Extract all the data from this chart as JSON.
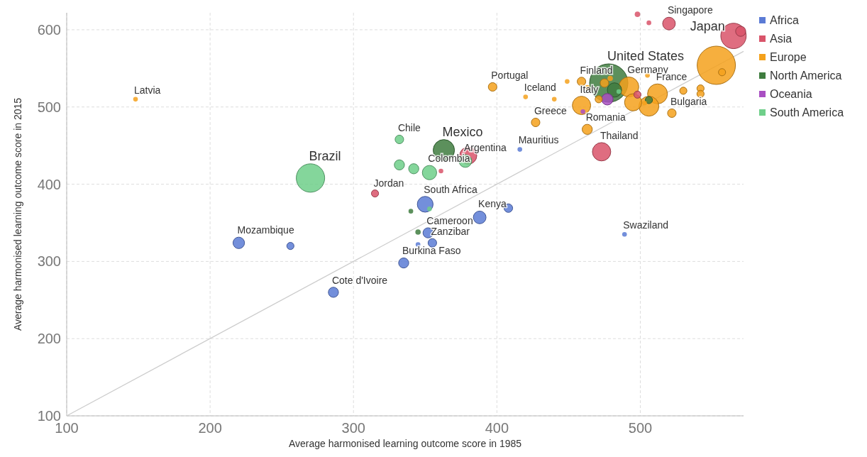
{
  "chart_data": {
    "type": "bubble",
    "xlabel": "Average harmonised learning outcome score in 1985",
    "ylabel": "Average harmonised learning outcome score in 2015",
    "xlim": [
      100,
      572
    ],
    "ylim": [
      100,
      622
    ],
    "xticks": [
      100,
      200,
      300,
      400,
      500
    ],
    "yticks": [
      100,
      200,
      300,
      400,
      500,
      600
    ],
    "grid": true,
    "legend": "top right",
    "series": [
      {
        "name": "Africa",
        "color": "#5b7bd5",
        "x": [
          220,
          256,
          286,
          335,
          352,
          345,
          355,
          350,
          388,
          408,
          416,
          489
        ],
        "values": [
          324,
          320,
          260,
          298,
          337,
          322,
          324,
          374,
          357,
          369,
          445,
          335
        ],
        "sizes": [
          0.09,
          0.035,
          0.07,
          0.07,
          0.07,
          0.015,
          0.05,
          0.17,
          0.11,
          0.05,
          0.015,
          0.015
        ]
      },
      {
        "name": "Asia",
        "color": "#d9546a",
        "x": [
          315,
          380,
          361,
          473,
          520,
          498,
          506,
          565,
          570,
          498
        ],
        "values": [
          388,
          437,
          417,
          442,
          608,
          620,
          609,
          592,
          598,
          516
        ],
        "sizes": [
          0.035,
          0.2,
          0.015,
          0.23,
          0.11,
          0.02,
          0.015,
          0.44,
          0.07,
          0.035
        ]
      },
      {
        "name": "Europe",
        "color": "#f4a11c",
        "x": [
          148,
          397,
          420,
          427,
          463,
          459,
          475,
          479,
          459,
          449,
          440,
          463,
          471,
          492,
          495,
          512,
          506,
          522,
          542,
          542,
          530,
          553,
          557,
          505,
          503
        ],
        "values": [
          510,
          526,
          513,
          480,
          471,
          502,
          531,
          537,
          533,
          533,
          510,
          525,
          510,
          526,
          506,
          517,
          501,
          492,
          524,
          517,
          521,
          554,
          545,
          541,
          505
        ],
        "sizes": [
          0.015,
          0.05,
          0.015,
          0.05,
          0.07,
          0.23,
          0.05,
          0.02,
          0.05,
          0.015,
          0.015,
          0.02,
          0.035,
          0.27,
          0.2,
          0.27,
          0.27,
          0.05,
          0.035,
          0.035,
          0.035,
          1,
          0.035,
          0.015,
          0.015
        ]
      },
      {
        "name": "North America",
        "color": "#3f7d3f",
        "x": [
          478,
          482,
          363,
          506,
          340,
          345
        ],
        "values": [
          531,
          522,
          444,
          509,
          365,
          338
        ],
        "sizes": [
          1,
          0.14,
          0.31,
          0.035,
          0.015,
          0.02
        ]
      },
      {
        "name": "Oceania",
        "color": "#a94fc2",
        "x": [
          477,
          460
        ],
        "values": [
          510,
          494
        ],
        "sizes": [
          0.09,
          0.015
        ]
      },
      {
        "name": "South America",
        "color": "#6fcf8a",
        "x": [
          270,
          332,
          332,
          342,
          353,
          378,
          353,
          485
        ],
        "values": [
          408,
          458,
          425,
          420,
          415,
          430,
          368,
          520
        ],
        "sizes": [
          0.55,
          0.05,
          0.07,
          0.07,
          0.14,
          0.11,
          0.015,
          0.015
        ]
      },
      {
        "type": "line",
        "color": "#cccccc",
        "x": [
          100,
          572
        ],
        "values": [
          100,
          572
        ]
      }
    ],
    "annotations": [
      {
        "text": "Latvia",
        "x": 148,
        "y": 510
      },
      {
        "text": "Brazil",
        "x": 270,
        "y": 408
      },
      {
        "text": "Mozambique",
        "x": 220,
        "y": 324
      },
      {
        "text": "Cote d'Ivoire",
        "x": 286,
        "y": 260
      },
      {
        "text": "Burkina Faso",
        "x": 335,
        "y": 298
      },
      {
        "text": "Zanzibar",
        "x": 355,
        "y": 324
      },
      {
        "text": "Cameroon",
        "x": 352,
        "y": 337
      },
      {
        "text": "South Africa",
        "x": 350,
        "y": 374
      },
      {
        "text": "Jordan",
        "x": 315,
        "y": 388
      },
      {
        "text": "Kenya",
        "x": 388,
        "y": 357
      },
      {
        "text": "Chile",
        "x": 332,
        "y": 458
      },
      {
        "text": "Mexico",
        "x": 363,
        "y": 444
      },
      {
        "text": "Colombia",
        "x": 353,
        "y": 415
      },
      {
        "text": "Argentina",
        "x": 378,
        "y": 430
      },
      {
        "text": "Mauritius",
        "x": 416,
        "y": 445
      },
      {
        "text": "Swaziland",
        "x": 489,
        "y": 335
      },
      {
        "text": "Thailand",
        "x": 473,
        "y": 442
      },
      {
        "text": "Romania",
        "x": 463,
        "y": 471
      },
      {
        "text": "Greece",
        "x": 427,
        "y": 480
      },
      {
        "text": "Italy",
        "x": 459,
        "y": 502
      },
      {
        "text": "Iceland",
        "x": 420,
        "y": 513
      },
      {
        "text": "Portugal",
        "x": 397,
        "y": 526
      },
      {
        "text": "Finland",
        "x": 459,
        "y": 533
      },
      {
        "text": "United States",
        "x": 478,
        "y": 531
      },
      {
        "text": "Germany",
        "x": 492,
        "y": 526
      },
      {
        "text": "France",
        "x": 512,
        "y": 517
      },
      {
        "text": "Bulgaria",
        "x": 522,
        "y": 492
      },
      {
        "text": "Singapore",
        "x": 520,
        "y": 608
      },
      {
        "text": "Japan",
        "x": 565,
        "y": 592
      }
    ]
  }
}
